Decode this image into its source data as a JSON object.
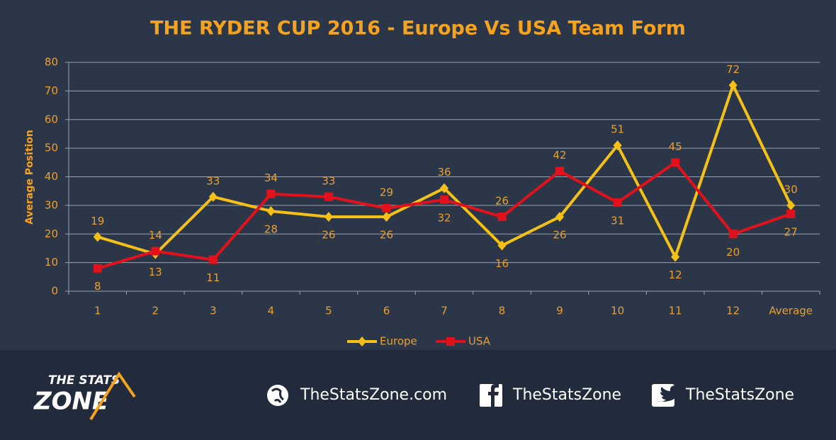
{
  "chart_data": {
    "type": "line",
    "title": "THE RYDER CUP 2016 - Europe Vs USA Team Form",
    "y_label": "Average Position",
    "categories": [
      "1",
      "2",
      "3",
      "4",
      "5",
      "6",
      "7",
      "8",
      "9",
      "10",
      "11",
      "12",
      "Average"
    ],
    "series": [
      {
        "name": "Europe",
        "color": "#f5c116",
        "marker": "diamond",
        "values": [
          19,
          13,
          33,
          28,
          26,
          26,
          36,
          16,
          26,
          51,
          12,
          72,
          30
        ]
      },
      {
        "name": "USA",
        "color": "#e2111b",
        "marker": "square",
        "values": [
          8,
          14,
          11,
          34,
          33,
          29,
          32,
          26,
          42,
          31,
          45,
          20,
          27
        ]
      }
    ],
    "ylim": [
      0,
      80
    ],
    "yticks": [
      0,
      10,
      20,
      30,
      40,
      50,
      60,
      70,
      80
    ],
    "grid": true,
    "legend": "bottom",
    "data_labels": true
  },
  "footer": {
    "logo_top": "THE STATS",
    "logo_bottom": "ZONE",
    "website": "TheStatsZone.com",
    "facebook": "TheStatsZone",
    "twitter": "TheStatsZone"
  }
}
